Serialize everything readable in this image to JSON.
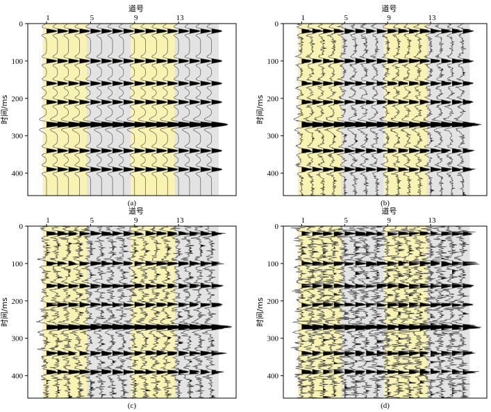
{
  "figure": {
    "panel_labels": [
      "(a)",
      "(b)",
      "(c)",
      "(d)"
    ]
  },
  "colors": {
    "yellow_band": "#f8f3b0",
    "gray_band": "#e3e3e3",
    "trace_line": "#555555",
    "fill": "#000000"
  },
  "chart_data": [
    {
      "type": "seismic-wiggle",
      "panel": "(a)",
      "noise": 0,
      "title": "",
      "xlabel": "道号",
      "ylabel": "时间/ms",
      "x_ticks": [
        1,
        5,
        9,
        13
      ],
      "y_ticks": [
        0,
        100,
        200,
        300,
        400
      ],
      "ylim": [
        0,
        460
      ],
      "traces": 16,
      "bands": [
        {
          "from_trace": 1,
          "to_trace": 4,
          "color": "yellow"
        },
        {
          "from_trace": 5,
          "to_trace": 8,
          "color": "gray"
        },
        {
          "from_trace": 9,
          "to_trace": 12,
          "color": "yellow"
        },
        {
          "from_trace": 13,
          "to_trace": 16,
          "color": "gray"
        }
      ],
      "events_ms": [
        20,
        100,
        160,
        210,
        270,
        340,
        390
      ],
      "strong_event_ms": 270
    },
    {
      "type": "seismic-wiggle",
      "panel": "(b)",
      "noise": 1,
      "title": "",
      "xlabel": "道号",
      "ylabel": "时间/ms",
      "x_ticks": [
        1,
        5,
        9,
        13
      ],
      "y_ticks": [
        0,
        100,
        200,
        300,
        400
      ],
      "ylim": [
        0,
        460
      ],
      "traces": 16,
      "bands": [
        {
          "from_trace": 1,
          "to_trace": 4,
          "color": "yellow"
        },
        {
          "from_trace": 5,
          "to_trace": 8,
          "color": "gray"
        },
        {
          "from_trace": 9,
          "to_trace": 12,
          "color": "yellow"
        },
        {
          "from_trace": 13,
          "to_trace": 16,
          "color": "gray"
        }
      ],
      "events_ms": [
        20,
        100,
        160,
        210,
        270,
        340,
        390
      ],
      "strong_event_ms": 270
    },
    {
      "type": "seismic-wiggle",
      "panel": "(c)",
      "noise": 2,
      "title": "",
      "xlabel": "道号",
      "ylabel": "时间/ms",
      "x_ticks": [
        1,
        5,
        9,
        13
      ],
      "y_ticks": [
        0,
        100,
        200,
        300,
        400
      ],
      "ylim": [
        0,
        460
      ],
      "traces": 16,
      "bands": [
        {
          "from_trace": 1,
          "to_trace": 4,
          "color": "yellow"
        },
        {
          "from_trace": 5,
          "to_trace": 8,
          "color": "gray"
        },
        {
          "from_trace": 9,
          "to_trace": 12,
          "color": "yellow"
        },
        {
          "from_trace": 13,
          "to_trace": 16,
          "color": "gray"
        }
      ],
      "events_ms": [
        20,
        100,
        160,
        210,
        270,
        340,
        390
      ],
      "strong_event_ms": 270
    },
    {
      "type": "seismic-wiggle",
      "panel": "(d)",
      "noise": 3,
      "title": "",
      "xlabel": "道号",
      "ylabel": "时间/ms",
      "x_ticks": [
        1,
        5,
        9,
        13
      ],
      "y_ticks": [
        0,
        100,
        200,
        300,
        400
      ],
      "ylim": [
        0,
        460
      ],
      "traces": 16,
      "bands": [
        {
          "from_trace": 1,
          "to_trace": 4,
          "color": "yellow"
        },
        {
          "from_trace": 5,
          "to_trace": 8,
          "color": "gray"
        },
        {
          "from_trace": 9,
          "to_trace": 12,
          "color": "yellow"
        },
        {
          "from_trace": 13,
          "to_trace": 16,
          "color": "gray"
        }
      ],
      "events_ms": [
        20,
        100,
        160,
        210,
        270,
        340,
        390
      ],
      "strong_event_ms": 270
    }
  ]
}
